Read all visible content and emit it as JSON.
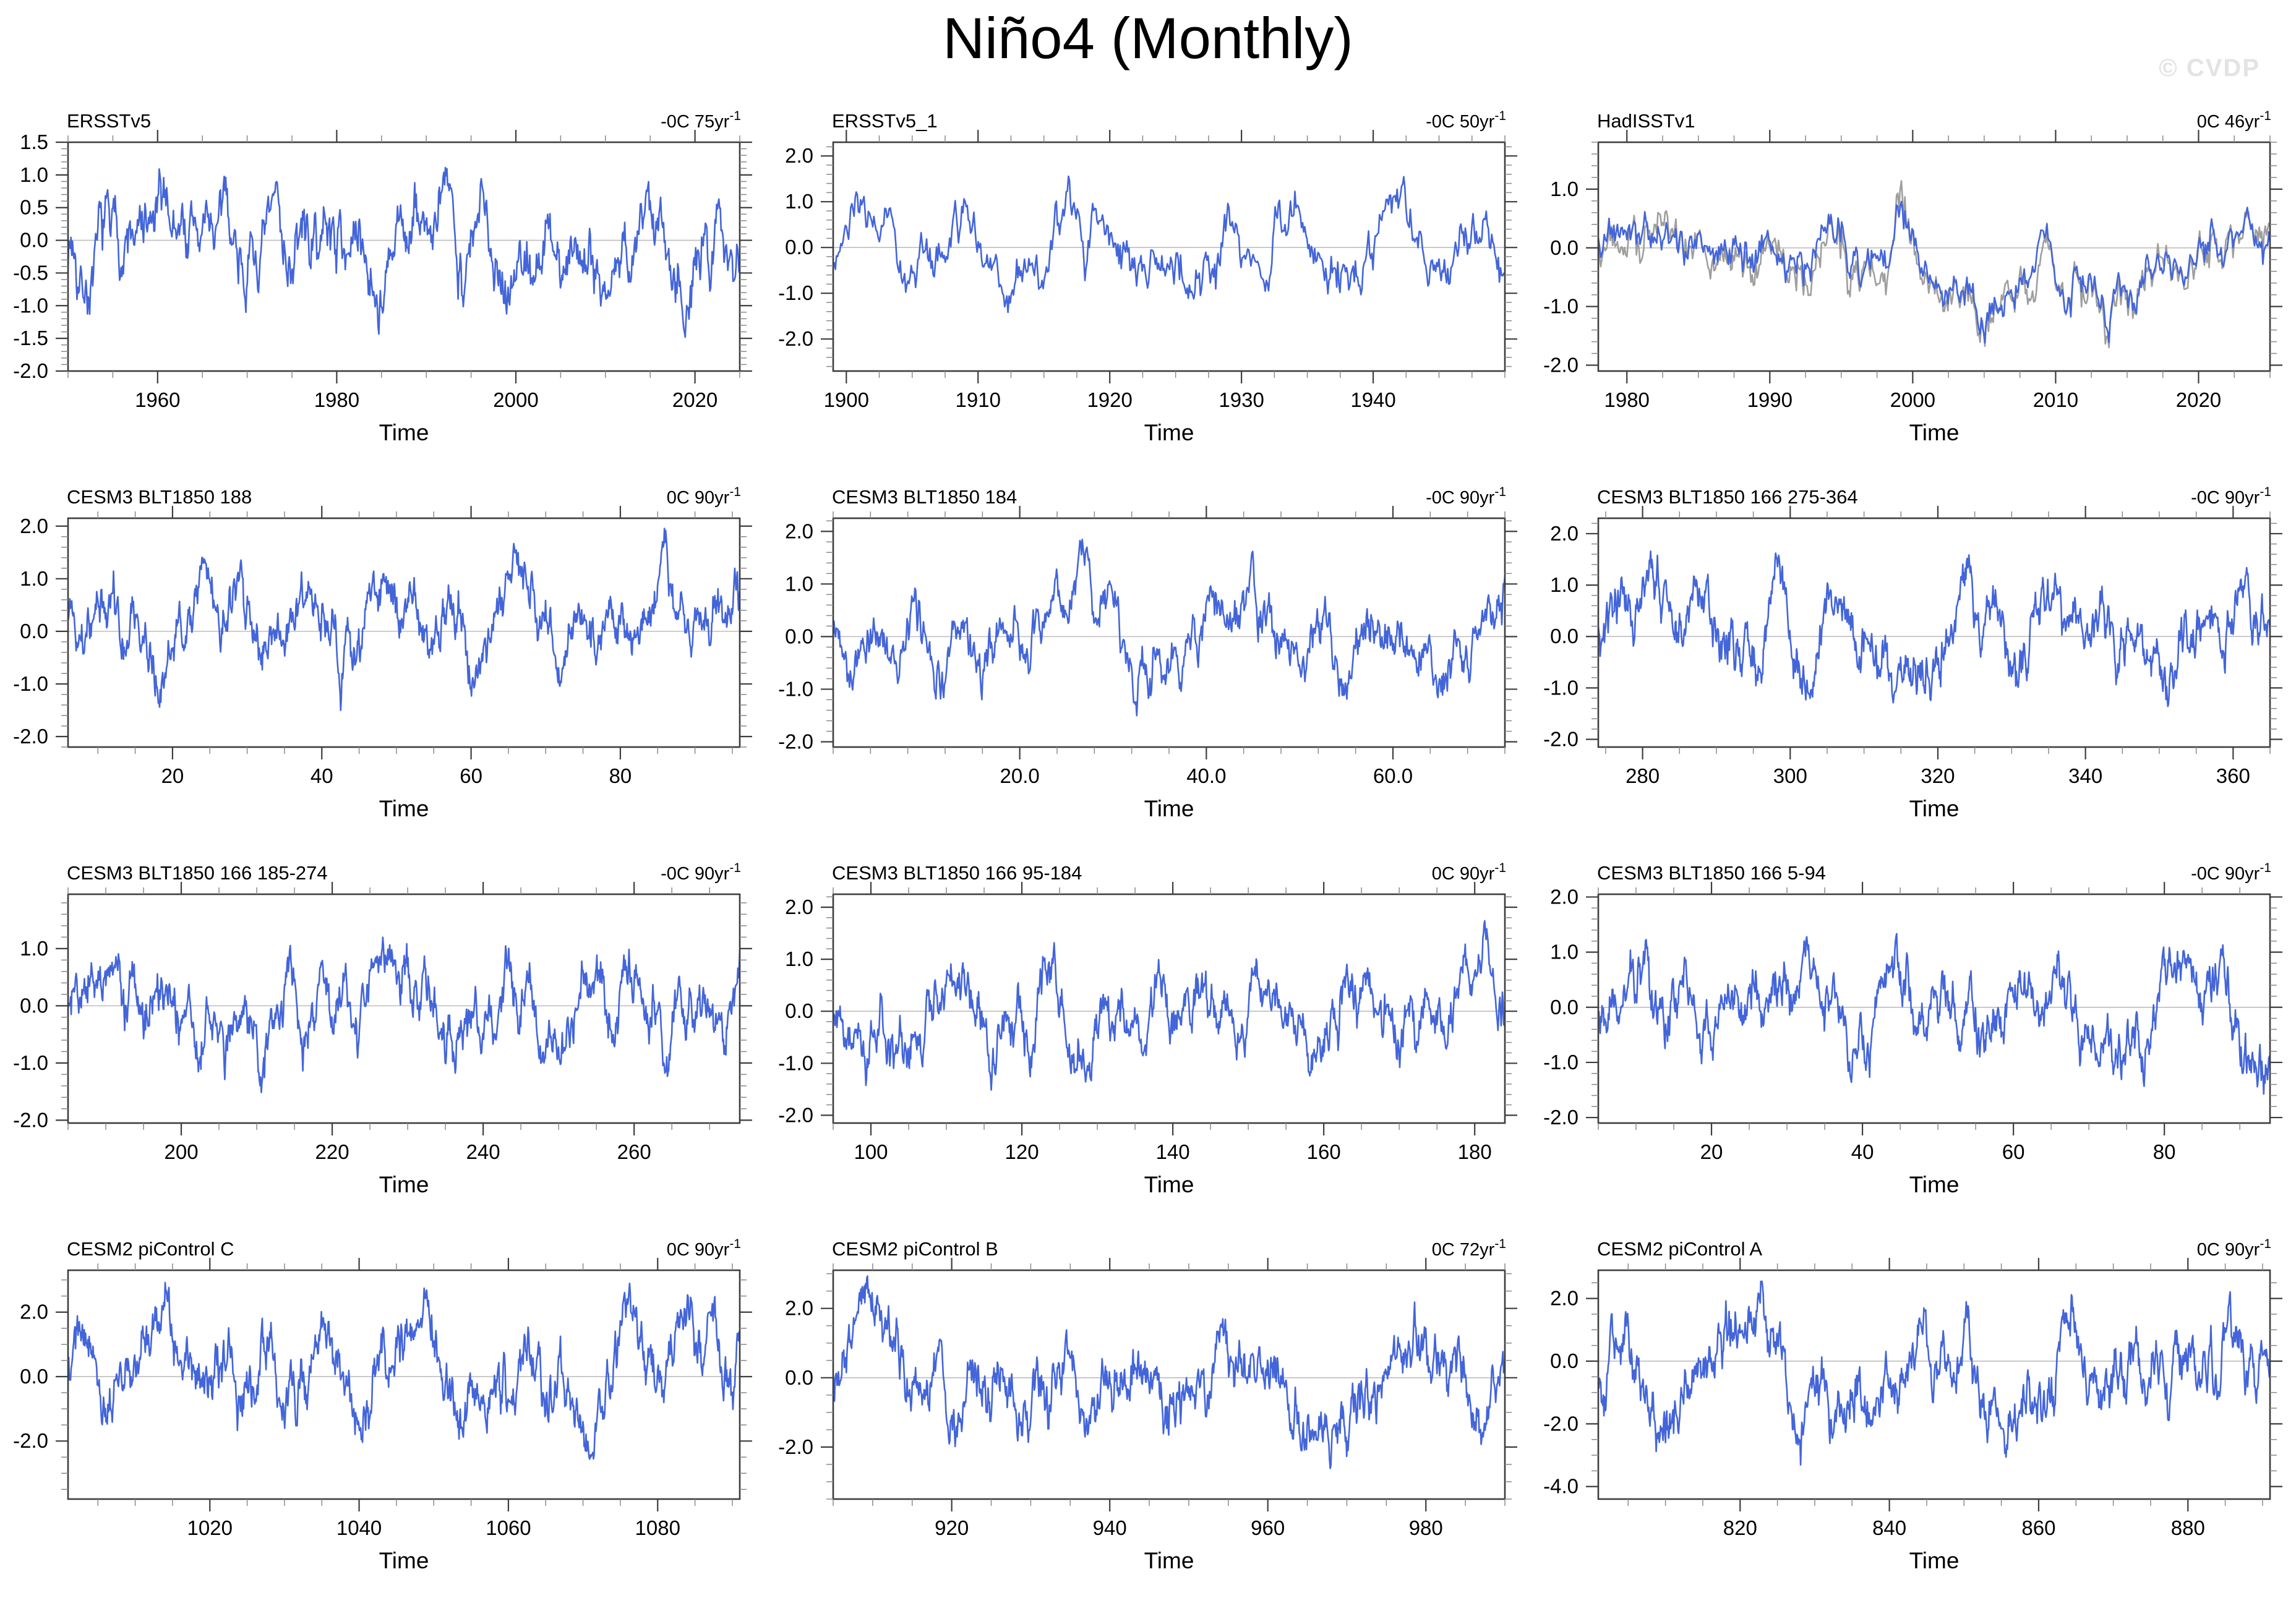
{
  "title": "Niño4 (Monthly)",
  "watermark": "© CVDP",
  "xlabel": "Time",
  "colors": {
    "line": "#4365d9",
    "secondary_line": "#9e9e9e",
    "frame": "#3d3d3d",
    "tick_minor": "#8a8a8a",
    "zero_line": "#bdbdbd",
    "text": "#000000",
    "watermark": "#e3e3e3",
    "background": "#ffffff"
  },
  "chart_data": [
    {
      "type": "line",
      "title": "ERSSTv5",
      "trend_value": "-0C 75yr",
      "trend_sup": "-1",
      "xlabel": "Time",
      "xlim": [
        1950,
        2025
      ],
      "x_ticks": [
        1960,
        1980,
        2000,
        2020
      ],
      "x_tick_labels": [
        "1960",
        "1980",
        "2000",
        "2020"
      ],
      "x_minor_step": 5,
      "ylim": [
        -2.0,
        1.5
      ],
      "y_ticks": [
        1.5,
        1.0,
        0.5,
        0.0,
        -0.5,
        -1.0,
        -1.5,
        -2.0
      ],
      "y_tick_labels": [
        "1.5",
        "1.0",
        "0.5",
        "0.0",
        "-0.5",
        "-1.0",
        "-1.5",
        "-2.0"
      ],
      "y_minor_step": 0.1,
      "zero_line": 0.0,
      "n_points": 900,
      "seed": 7,
      "amp": 0.78,
      "secondary": false,
      "series": [
        {
          "name": "ERSSTv5",
          "color_key": "line"
        }
      ]
    },
    {
      "type": "line",
      "title": "ERSSTv5_1",
      "trend_value": "-0C 50yr",
      "trend_sup": "-1",
      "xlabel": "Time",
      "xlim": [
        1899,
        1950
      ],
      "x_ticks": [
        1900,
        1910,
        1920,
        1930,
        1940
      ],
      "x_tick_labels": [
        "1900",
        "1910",
        "1920",
        "1930",
        "1940"
      ],
      "x_minor_step": 2.5,
      "ylim": [
        -2.7,
        2.3
      ],
      "y_ticks": [
        2.0,
        1.0,
        0.0,
        -1.0,
        -2.0
      ],
      "y_tick_labels": [
        "2.0",
        "1.0",
        "0.0",
        "-1.0",
        "-2.0"
      ],
      "y_minor_step": 0.2,
      "zero_line": 0.0,
      "n_points": 612,
      "seed": 23,
      "amp": 0.85,
      "secondary": false,
      "series": [
        {
          "name": "ERSSTv5_1",
          "color_key": "line"
        }
      ]
    },
    {
      "type": "line",
      "title": "HadISSTv1",
      "trend_value": "0C 46yr",
      "trend_sup": "-1",
      "xlabel": "Time",
      "xlim": [
        1978,
        2025
      ],
      "x_ticks": [
        1980,
        1990,
        2000,
        2010,
        2020
      ],
      "x_tick_labels": [
        "1980",
        "1990",
        "2000",
        "2010",
        "2020"
      ],
      "x_minor_step": 2.5,
      "ylim": [
        -2.1,
        1.8
      ],
      "y_ticks": [
        1.0,
        0.0,
        -1.0,
        -2.0
      ],
      "y_tick_labels": [
        "1.0",
        "0.0",
        "-1.0",
        "-2.0"
      ],
      "y_minor_step": 0.2,
      "zero_line": 0.0,
      "n_points": 564,
      "seed": 5,
      "amp": 0.62,
      "secondary": true,
      "secondary_jitter": 0.16,
      "series": [
        {
          "name": "HadISSTv1-overlay",
          "color_key": "secondary_line"
        },
        {
          "name": "HadISSTv1",
          "color_key": "line"
        }
      ]
    },
    {
      "type": "line",
      "title": "CESM3 BLT1850 188",
      "trend_value": "0C 90yr",
      "trend_sup": "-1",
      "xlabel": "Time",
      "xlim": [
        6,
        96
      ],
      "x_ticks": [
        20,
        40,
        60,
        80
      ],
      "x_tick_labels": [
        "20",
        "40",
        "60",
        "80"
      ],
      "x_minor_step": 5,
      "ylim": [
        -2.2,
        2.15
      ],
      "y_ticks": [
        2.0,
        1.0,
        0.0,
        -1.0,
        -2.0
      ],
      "y_tick_labels": [
        "2.0",
        "1.0",
        "0.0",
        "-1.0",
        "-2.0"
      ],
      "y_minor_step": 0.2,
      "zero_line": 0.0,
      "n_points": 1080,
      "seed": 41,
      "amp": 0.72,
      "secondary": false,
      "series": [
        {
          "name": "CESM3 BLT1850 188",
          "color_key": "line"
        }
      ]
    },
    {
      "type": "line",
      "title": "CESM3 BLT1850 184",
      "trend_value": "-0C 90yr",
      "trend_sup": "-1",
      "xlabel": "Time",
      "xlim": [
        0,
        72
      ],
      "x_ticks": [
        20,
        40,
        60
      ],
      "x_tick_labels": [
        "20.0",
        "40.0",
        "60.0"
      ],
      "x_minor_step": 4,
      "ylim": [
        -2.1,
        2.25
      ],
      "y_ticks": [
        2.0,
        1.0,
        0.0,
        -1.0,
        -2.0
      ],
      "y_tick_labels": [
        "2.0",
        "1.0",
        "0.0",
        "-1.0",
        "-2.0"
      ],
      "y_minor_step": 0.2,
      "zero_line": 0.0,
      "n_points": 864,
      "seed": 42,
      "amp": 0.74,
      "secondary": false,
      "series": [
        {
          "name": "CESM3 BLT1850 184",
          "color_key": "line"
        }
      ]
    },
    {
      "type": "line",
      "title": "CESM3 BLT1850 166 275-364",
      "trend_value": "-0C 90yr",
      "trend_sup": "-1",
      "xlabel": "Time",
      "xlim": [
        274,
        365
      ],
      "x_ticks": [
        280,
        300,
        320,
        340,
        360
      ],
      "x_tick_labels": [
        "280",
        "300",
        "320",
        "340",
        "360"
      ],
      "x_minor_step": 5,
      "ylim": [
        -2.15,
        2.3
      ],
      "y_ticks": [
        2.0,
        1.0,
        0.0,
        -1.0,
        -2.0
      ],
      "y_tick_labels": [
        "2.0",
        "1.0",
        "0.0",
        "-1.0",
        "-2.0"
      ],
      "y_minor_step": 0.2,
      "zero_line": 0.0,
      "n_points": 1092,
      "seed": 43,
      "amp": 0.74,
      "secondary": false,
      "series": [
        {
          "name": "CESM3 BLT1850 166 275-364",
          "color_key": "line"
        }
      ]
    },
    {
      "type": "line",
      "title": "CESM3 BLT1850 166 185-274",
      "trend_value": "-0C 90yr",
      "trend_sup": "-1",
      "xlabel": "Time",
      "xlim": [
        185,
        274
      ],
      "x_ticks": [
        200,
        220,
        240,
        260
      ],
      "x_tick_labels": [
        "200",
        "220",
        "240",
        "260"
      ],
      "x_minor_step": 5,
      "ylim": [
        -2.05,
        1.95
      ],
      "y_ticks": [
        1.0,
        0.0,
        -1.0,
        -2.0
      ],
      "y_tick_labels": [
        "1.0",
        "0.0",
        "-1.0",
        "-2.0"
      ],
      "y_minor_step": 0.2,
      "zero_line": 0.0,
      "n_points": 1068,
      "seed": 44,
      "amp": 0.7,
      "secondary": false,
      "series": [
        {
          "name": "CESM3 BLT1850 166 185-274",
          "color_key": "line"
        }
      ]
    },
    {
      "type": "line",
      "title": "CESM3 BLT1850 166 95-184",
      "trend_value": "0C 90yr",
      "trend_sup": "-1",
      "xlabel": "Time",
      "xlim": [
        95,
        184
      ],
      "x_ticks": [
        100,
        120,
        140,
        160,
        180
      ],
      "x_tick_labels": [
        "100",
        "120",
        "140",
        "160",
        "180"
      ],
      "x_minor_step": 5,
      "ylim": [
        -2.15,
        2.25
      ],
      "y_ticks": [
        2.0,
        1.0,
        0.0,
        -1.0,
        -2.0
      ],
      "y_tick_labels": [
        "2.0",
        "1.0",
        "0.0",
        "-1.0",
        "-2.0"
      ],
      "y_minor_step": 0.2,
      "zero_line": 0.0,
      "n_points": 1068,
      "seed": 45,
      "amp": 0.73,
      "secondary": false,
      "series": [
        {
          "name": "CESM3 BLT1850 166 95-184",
          "color_key": "line"
        }
      ]
    },
    {
      "type": "line",
      "title": "CESM3 BLT1850 166 5-94",
      "trend_value": "-0C 90yr",
      "trend_sup": "-1",
      "xlabel": "Time",
      "xlim": [
        5,
        94
      ],
      "x_ticks": [
        20,
        40,
        60,
        80
      ],
      "x_tick_labels": [
        "20",
        "40",
        "60",
        "80"
      ],
      "x_minor_step": 5,
      "ylim": [
        -2.1,
        2.05
      ],
      "y_ticks": [
        2.0,
        1.0,
        0.0,
        -1.0,
        -2.0
      ],
      "y_tick_labels": [
        "2.0",
        "1.0",
        "0.0",
        "-1.0",
        "-2.0"
      ],
      "y_minor_step": 0.2,
      "zero_line": 0.0,
      "n_points": 1068,
      "seed": 46,
      "amp": 0.72,
      "secondary": false,
      "series": [
        {
          "name": "CESM3 BLT1850 166 5-94",
          "color_key": "line"
        }
      ]
    },
    {
      "type": "line",
      "title": "CESM2 piControl C",
      "trend_value": "0C 90yr",
      "trend_sup": "-1",
      "xlabel": "Time",
      "xlim": [
        1001,
        1091
      ],
      "x_ticks": [
        1020,
        1040,
        1060,
        1080
      ],
      "x_tick_labels": [
        "1020",
        "1040",
        "1060",
        "1080"
      ],
      "x_minor_step": 5,
      "ylim": [
        -3.8,
        3.3
      ],
      "y_ticks": [
        2.0,
        0.0,
        -2.0
      ],
      "y_tick_labels": [
        "2.0",
        "0.0",
        "-2.0"
      ],
      "y_minor_step": 0.5,
      "zero_line": 0.0,
      "n_points": 1080,
      "seed": 61,
      "amp": 1.25,
      "secondary": false,
      "series": [
        {
          "name": "CESM2 piControl C",
          "color_key": "line"
        }
      ]
    },
    {
      "type": "line",
      "title": "CESM2 piControl B",
      "trend_value": "0C 72yr",
      "trend_sup": "-1",
      "xlabel": "Time",
      "xlim": [
        905,
        990
      ],
      "x_ticks": [
        920,
        940,
        960,
        980
      ],
      "x_tick_labels": [
        "920",
        "940",
        "960",
        "980"
      ],
      "x_minor_step": 5,
      "ylim": [
        -3.5,
        3.1
      ],
      "y_ticks": [
        2.0,
        0.0,
        -2.0
      ],
      "y_tick_labels": [
        "2.0",
        "0.0",
        "-2.0"
      ],
      "y_minor_step": 0.5,
      "zero_line": 0.0,
      "n_points": 1020,
      "seed": 62,
      "amp": 1.2,
      "secondary": false,
      "series": [
        {
          "name": "CESM2 piControl B",
          "color_key": "line"
        }
      ]
    },
    {
      "type": "line",
      "title": "CESM2 piControl A",
      "trend_value": "0C 90yr",
      "trend_sup": "-1",
      "xlabel": "Time",
      "xlim": [
        801,
        891
      ],
      "x_ticks": [
        820,
        840,
        860,
        880
      ],
      "x_tick_labels": [
        "820",
        "840",
        "860",
        "880"
      ],
      "x_minor_step": 5,
      "ylim": [
        -4.4,
        2.9
      ],
      "y_ticks": [
        2.0,
        0.0,
        -2.0,
        -4.0
      ],
      "y_tick_labels": [
        "2.0",
        "0.0",
        "-2.0",
        "-4.0"
      ],
      "y_minor_step": 0.5,
      "zero_line": 0.0,
      "n_points": 1080,
      "seed": 63,
      "amp": 1.3,
      "secondary": false,
      "series": [
        {
          "name": "CESM2 piControl A",
          "color_key": "line"
        }
      ]
    }
  ]
}
